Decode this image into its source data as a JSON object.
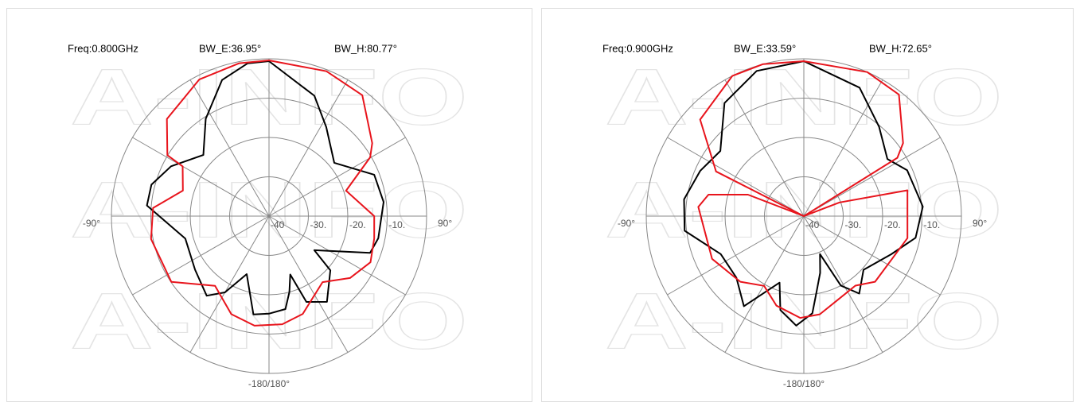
{
  "chart_data": [
    {
      "type": "polar",
      "watermark": "A-INFO",
      "freq": "Freq:0.800GHz",
      "bw_e": "BW_E:36.95°",
      "bw_h": "BW_H:80.77°",
      "rlim": [
        -40,
        0
      ],
      "rticks": [
        -40,
        {
          "value": -30,
          "label": "-30."
        },
        {
          "value": -20,
          "label": "-20."
        },
        {
          "value": -10,
          "label": "-10."
        },
        0
      ],
      "thetaticks": [
        {
          "value": -90,
          "label": "-90°"
        },
        {
          "value": 90,
          "label": "90°"
        },
        {
          "value": 180,
          "label": "-180/180°"
        }
      ],
      "series": [
        {
          "color": "#000000",
          "theta": [
            0,
            20.6,
            32.7,
            50.7,
            68.5,
            83,
            101.5,
            110,
            127,
            131.5,
            146,
            156.5,
            160,
            165,
            170,
            180,
            189,
            201,
            210,
            218,
            234,
            255,
            275,
            285,
            297,
            313,
            327,
            341,
            352
          ],
          "values": [
            -0.6,
            -7.3,
            -13.1,
            -18.6,
            -11.3,
            -10.7,
            -11.7,
            -12.7,
            -25.6,
            -19.2,
            -13.7,
            -16.2,
            -24.2,
            -20,
            -16,
            -15.2,
            -14.7,
            -24.2,
            -17.6,
            -14.3,
            -16.8,
            -18,
            -8.9,
            -9.1,
            -12.1,
            -17.2,
            -10.5,
            -3.4,
            -0.8
          ]
        },
        {
          "color": "#e8141c",
          "theta": [
            0,
            21.6,
            37.6,
            54.7,
            59.8,
            71.7,
            90,
            102,
            114.5,
            127.4,
            141,
            161,
            173,
            187.5,
            201,
            217.7,
            236,
            259,
            274,
            286.5,
            300,
            301,
            313.6,
            333,
            349
          ],
          "values": [
            -0.4,
            -0.4,
            -1.2,
            -7.9,
            -10.3,
            -19.4,
            -13.3,
            -12.7,
            -11.7,
            -14.1,
            -18.4,
            -13.7,
            -12.3,
            -11.9,
            -13.3,
            -17.6,
            -10.1,
            -9.5,
            -10.5,
            -17.2,
            -14.7,
            -9.9,
            -4.2,
            -1,
            -0.4
          ]
        }
      ]
    },
    {
      "type": "polar",
      "watermark": "A-INFO",
      "freq": "Freq:0.900GHz",
      "bw_e": "BW_E:33.59°",
      "bw_h": "BW_H:72.65°",
      "rlim": [
        -40,
        0
      ],
      "rticks": [
        -40,
        {
          "value": -30,
          "label": "-30."
        },
        {
          "value": -20,
          "label": "-20."
        },
        {
          "value": -10,
          "label": "-10."
        },
        0
      ],
      "thetaticks": [
        {
          "value": -90,
          "label": "-90°"
        },
        {
          "value": 90,
          "label": "90°"
        },
        {
          "value": 180,
          "label": "-180/180°"
        }
      ],
      "series": [
        {
          "color": "#000000",
          "theta": [
            0,
            23.4,
            40,
            55.6,
            66,
            85.4,
            101,
            113.6,
            132,
            144.5,
            152,
            157,
            164,
            171,
            175,
            184,
            194,
            200,
            213.6,
            227.5,
            245.4,
            263,
            278,
            293.7,
            308,
            325,
            342
          ],
          "values": [
            -0.6,
            -4.4,
            -10.3,
            -14.3,
            -11.3,
            -9.7,
            -11.1,
            -15.8,
            -19.6,
            -15.8,
            -20,
            -29.5,
            -25,
            -20,
            -15.2,
            -12.1,
            -15.4,
            -22,
            -12.5,
            -16.8,
            -16.8,
            -9.5,
            -9.3,
            -11.3,
            -13.1,
            -4.9,
            -1.2
          ]
        },
        {
          "color": "#e8141c",
          "theta": [
            0,
            23.7,
            38,
            53.6,
            58,
            62,
            69,
            76,
            102,
            132.7,
            143.5,
            159.7,
            170.8,
            182,
            197,
            209.6,
            224,
            245,
            275,
            282.7,
            291,
            295,
            297,
            313,
            333,
            345
          ],
          "values": [
            -0.6,
            0,
            -0.8,
            -8.7,
            -12,
            -40,
            -30.3,
            -12.9,
            -13.1,
            -15.4,
            -18,
            -16.8,
            -14.7,
            -14.1,
            -16.2,
            -19.6,
            -16.8,
            -14.3,
            -13.1,
            -15.2,
            -24.8,
            -40,
            -15,
            -4,
            0,
            0
          ]
        }
      ]
    }
  ]
}
